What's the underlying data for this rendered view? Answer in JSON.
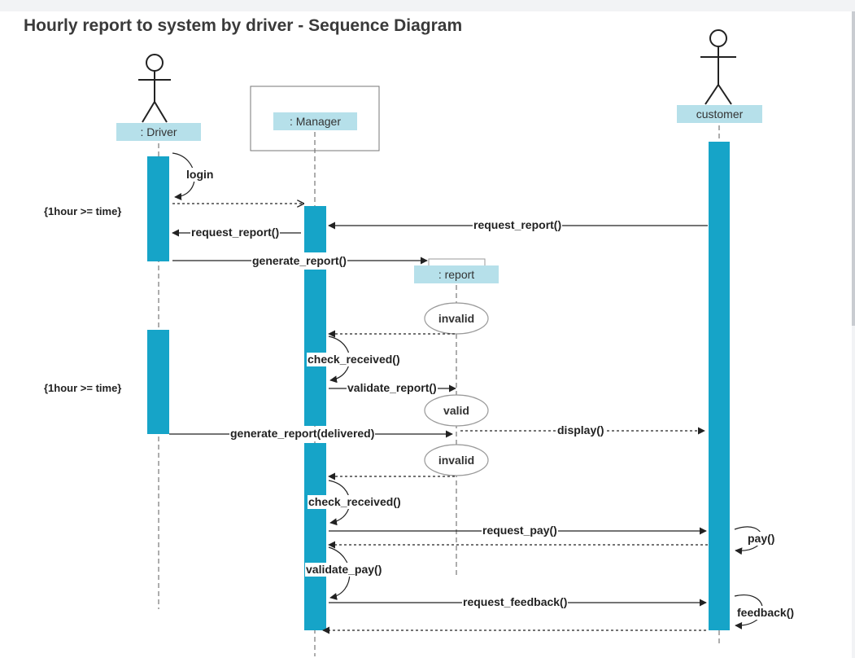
{
  "title": "Hourly report to system by driver - Sequence Diagram",
  "colors": {
    "activation": "#16a4c8",
    "role_fill": "#b6e0ea",
    "line": "#222222",
    "lifeline": "#777777"
  },
  "lifelines": {
    "driver": ": Driver",
    "manager": ": Manager",
    "customer": "customer",
    "report": ": report"
  },
  "guards": {
    "first": "{1hour >= time}",
    "second": "{1hour >= time}"
  },
  "states": {
    "invalid_1": "invalid",
    "valid": "valid",
    "invalid_2": "invalid"
  },
  "messages": {
    "login": "login",
    "request_report_in": "request_report()",
    "request_report_out": "request_report()",
    "generate_report": "generate_report()",
    "check_received_1": "check_received()",
    "validate_report": "validate_report()",
    "generate_report_delivered": "generate_report(delivered)",
    "display": "display()",
    "check_received_2": "check_received()",
    "request_pay": "request_pay()",
    "pay": "pay()",
    "validate_pay": "validate_pay()",
    "request_feedback": "request_feedback()",
    "feedback": "feedback()"
  }
}
